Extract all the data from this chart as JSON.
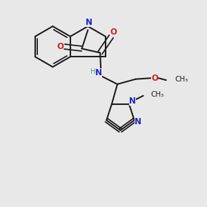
{
  "background_color": "#e8e8e8",
  "bond_color": "#1a1a1a",
  "nitrogen_color": "#2222cc",
  "oxygen_color": "#cc2222",
  "carbon_color": "#1a1a1a",
  "hydrogen_color": "#6a9a7a",
  "figsize": [
    3.0,
    3.0
  ],
  "dpi": 100,
  "xlim": [
    0,
    10
  ],
  "ylim": [
    0,
    10
  ]
}
